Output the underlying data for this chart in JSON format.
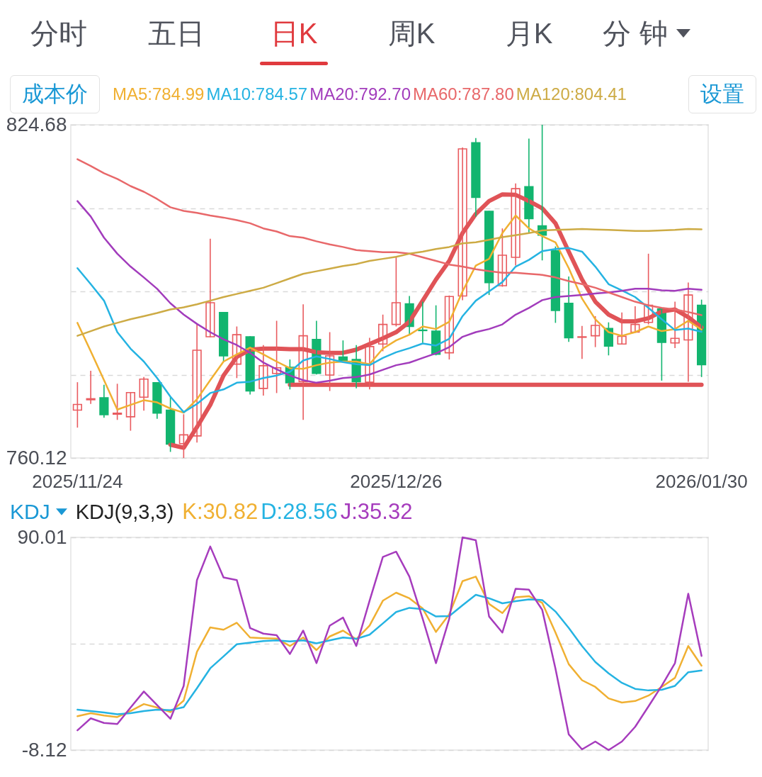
{
  "chart_data": [
    {
      "type": "other",
      "categories": [
        "分时",
        "五日",
        "日K",
        "周K",
        "月K",
        "分 钟"
      ],
      "colors": [
        "#50535c",
        "#50535c",
        "#e03a3e",
        "#50535c",
        "#50535c",
        "#50535c"
      ]
    },
    {
      "type": "candlestick",
      "categories": [
        "2025/11/24",
        null,
        null,
        null,
        null,
        null,
        null,
        null,
        null,
        null,
        null,
        null,
        null,
        null,
        null,
        null,
        null,
        null,
        null,
        null,
        null,
        null,
        null,
        null,
        "2025/12/26",
        null,
        null,
        null,
        null,
        null,
        null,
        null,
        null,
        null,
        null,
        null,
        null,
        null,
        null,
        null,
        null,
        null,
        null,
        null,
        null,
        null,
        null,
        "2026/01/30"
      ],
      "ohlc": [
        [
          769.4,
          774.8,
          766.0,
          770.5
        ],
        [
          771.4,
          777.0,
          770.6,
          771.6
        ],
        [
          771.8,
          774.3,
          767.9,
          768.5
        ],
        [
          768.6,
          774.5,
          767.5,
          768.8
        ],
        [
          768.1,
          772.9,
          765.4,
          772.8
        ],
        [
          771.9,
          775.8,
          769.3,
          775.4
        ],
        [
          774.7,
          774.8,
          767.7,
          768.8
        ],
        [
          769.4,
          772.0,
          761.3,
          762.8
        ],
        [
          762.9,
          768.6,
          760.12,
          764.6
        ],
        [
          764.4,
          786.0,
          763.1,
          781.0
        ],
        [
          783.6,
          802.6,
          783.5,
          790.2
        ],
        [
          788.3,
          788.4,
          778.8,
          779.9
        ],
        [
          778.3,
          785.6,
          775.6,
          784.0
        ],
        [
          783.6,
          783.7,
          772.4,
          773.1
        ],
        [
          773.6,
          782.0,
          772.2,
          778.0
        ],
        [
          776.5,
          786.7,
          772.7,
          777.6
        ],
        [
          777.7,
          779.2,
          773.4,
          774.7
        ],
        [
          774.9,
          789.9,
          767.5,
          783.8
        ],
        [
          783.1,
          786.7,
          776.3,
          776.5
        ],
        [
          776.2,
          784.5,
          773.1,
          779.9
        ],
        [
          779.7,
          782.9,
          778.8,
          779.0
        ],
        [
          779.2,
          782.0,
          773.6,
          774.9
        ],
        [
          774.8,
          783.4,
          773.4,
          781.7
        ],
        [
          782.2,
          787.9,
          780.8,
          786.0
        ],
        [
          786.0,
          799.2,
          785.6,
          790.2
        ],
        [
          790.0,
          791.5,
          784.0,
          785.6
        ],
        [
          784.9,
          790.4,
          782.4,
          784.8
        ],
        [
          784.7,
          789.7,
          780.0,
          780.2
        ],
        [
          780.5,
          791.6,
          779.2,
          791.4
        ],
        [
          791.5,
          820.3,
          790.7,
          820.0
        ],
        [
          821.2,
          822.1,
          806.9,
          810.6
        ],
        [
          807.9,
          808.0,
          791.7,
          794.1
        ],
        [
          793.5,
          804.6,
          793.3,
          799.4
        ],
        [
          799.0,
          813.3,
          797.4,
          812.3
        ],
        [
          812.7,
          822.0,
          803.7,
          806.5
        ],
        [
          805.1,
          824.68,
          798.4,
          803.3
        ],
        [
          800.3,
          801.1,
          786.3,
          788.7
        ],
        [
          790.1,
          795.3,
          782.6,
          783.4
        ],
        [
          783.5,
          785.7,
          779.3,
          783.6
        ],
        [
          783.8,
          787.6,
          781.6,
          785.8
        ],
        [
          785.2,
          786.4,
          780.0,
          781.8
        ],
        [
          782.2,
          788.3,
          782.1,
          783.7
        ],
        [
          784.5,
          789.5,
          784.4,
          786.0
        ],
        [
          786.4,
          799.7,
          786.0,
          789.7
        ],
        [
          789.0,
          789.1,
          775.1,
          782.5
        ],
        [
          782.4,
          790.4,
          781.4,
          783.3
        ],
        [
          783.0,
          794.1,
          774.9,
          791.7
        ],
        [
          789.7,
          790.8,
          775.8,
          778.2
        ]
      ],
      "colors": [
        "#e95b5f",
        "#e95b5f",
        "#12b56f",
        "#e95b5f",
        "#e95b5f",
        "#e95b5f",
        "#12b56f",
        "#12b56f",
        "#e95b5f",
        "#e95b5f",
        "#e95b5f",
        "#12b56f",
        "#e95b5f",
        "#12b56f",
        "#e95b5f",
        "#e95b5f",
        "#12b56f",
        "#e95b5f",
        "#12b56f",
        "#e95b5f",
        "#12b56f",
        "#12b56f",
        "#e95b5f",
        "#e95b5f",
        "#e95b5f",
        "#12b56f",
        "#12b56f",
        "#12b56f",
        "#e95b5f",
        "#e95b5f",
        "#12b56f",
        "#12b56f",
        "#e95b5f",
        "#e95b5f",
        "#12b56f",
        "#12b56f",
        "#12b56f",
        "#12b56f",
        "#e95b5f",
        "#e95b5f",
        "#12b56f",
        "#e95b5f",
        "#e95b5f",
        "#e95b5f",
        "#12b56f",
        "#e95b5f",
        "#e95b5f",
        "#12b56f"
      ],
      "series": [
        {
          "type": "line",
          "name": "MA5:784.99",
          "color": "#f0b032",
          "values": [
            786.3,
            780.8,
            775.2,
            769.5,
            770.4,
            771.3,
            770.9,
            769.7,
            768.9,
            771.5,
            775.2,
            778.8,
            780.2,
            781.5,
            780.2,
            778.8,
            777.5,
            777.4,
            778.1,
            778.6,
            778.8,
            778.8,
            778.3,
            781.3,
            782.9,
            784.0,
            785.6,
            785.1,
            786.5,
            792.4,
            797.4,
            798.7,
            803.7,
            807.1,
            804.6,
            803.1,
            801.9,
            796.9,
            791.0,
            787.0,
            784.5,
            783.8,
            784.5,
            785.6,
            784.7,
            785.1,
            786.7,
            784.99
          ]
        },
        {
          "type": "line",
          "name": "MA10:784.57",
          "color": "#25b3e2",
          "values": [
            796.9,
            793.8,
            790.6,
            784.5,
            781.3,
            778.8,
            775.6,
            772.0,
            769.0,
            770.6,
            772.7,
            773.4,
            774.7,
            774.9,
            775.6,
            776.1,
            776.8,
            779.0,
            779.8,
            779.3,
            778.7,
            778.3,
            778.1,
            779.5,
            780.6,
            781.4,
            782.3,
            781.9,
            783.2,
            787.6,
            790.6,
            792.4,
            794.2,
            797.2,
            798.5,
            800.2,
            800.6,
            800.8,
            800.1,
            797.2,
            793.8,
            792.6,
            791.3,
            789.2,
            787.0,
            784.9,
            785.2,
            784.57
          ]
        },
        {
          "type": "line",
          "name": "MA20:792.70",
          "color": "#a23cbc",
          "values": [
            809.9,
            806.9,
            802.8,
            799.7,
            797.2,
            795.1,
            792.9,
            790.1,
            787.9,
            786.1,
            784.5,
            783.1,
            782.0,
            780.5,
            778.6,
            777.3,
            776.1,
            775.2,
            774.7,
            775.1,
            775.6,
            775.8,
            776.3,
            777.2,
            778.1,
            778.6,
            779.5,
            780.4,
            781.6,
            783.6,
            784.5,
            785.1,
            786.0,
            787.9,
            789.2,
            790.7,
            791.3,
            791.5,
            791.7,
            792.0,
            792.2,
            792.5,
            792.9,
            792.9,
            792.6,
            792.5,
            792.9,
            792.7
          ]
        },
        {
          "type": "line",
          "name": "MA60:787.80",
          "color": "#e8686a",
          "values": [
            818.0,
            816.7,
            815.3,
            814.2,
            812.8,
            811.7,
            810.3,
            808.7,
            808.0,
            807.6,
            807.1,
            806.7,
            806.2,
            805.6,
            804.6,
            804.0,
            803.1,
            802.8,
            802.1,
            801.5,
            801.0,
            800.4,
            800.2,
            800.0,
            800.0,
            799.7,
            799.0,
            798.3,
            797.6,
            797.2,
            796.7,
            796.3,
            796.0,
            796.0,
            795.8,
            795.6,
            795.1,
            794.4,
            793.8,
            793.1,
            792.2,
            791.3,
            790.4,
            789.7,
            789.2,
            788.9,
            788.4,
            787.8
          ]
        },
        {
          "type": "line",
          "name": "MA120:804.41",
          "color": "#cdab45",
          "values": [
            783.8,
            784.7,
            785.6,
            786.3,
            787.0,
            787.6,
            788.2,
            788.9,
            789.3,
            789.9,
            790.6,
            791.3,
            791.9,
            792.5,
            793.1,
            794.0,
            794.9,
            795.8,
            796.3,
            796.8,
            797.3,
            797.7,
            798.3,
            798.7,
            799.1,
            799.7,
            800.1,
            800.6,
            801.0,
            801.7,
            801.9,
            802.4,
            802.9,
            803.3,
            803.7,
            804.2,
            804.3,
            804.4,
            804.5,
            804.4,
            804.3,
            804.2,
            804.1,
            804.1,
            804.2,
            804.3,
            804.5,
            804.41
          ]
        },
        {
          "type": "line",
          "color": "#e05357",
          "values": [
            null,
            null,
            null,
            null,
            null,
            null,
            null,
            762.7,
            762.1,
            766.1,
            770.4,
            776.1,
            779.7,
            781.1,
            781.3,
            781.3,
            781.2,
            781.2,
            780.6,
            780.5,
            780.5,
            781.1,
            782.2,
            783.3,
            784.5,
            786.5,
            790.6,
            794.7,
            798.3,
            803.7,
            807.4,
            809.9,
            811.2,
            811.1,
            809.9,
            808.5,
            805.6,
            800.1,
            794.7,
            790.4,
            787.9,
            786.6,
            786.6,
            787.2,
            788.5,
            788.9,
            787.4,
            785.4
          ]
        },
        {
          "type": "line",
          "color": "#e05357",
          "values": [
            null,
            null,
            null,
            null,
            null,
            null,
            null,
            null,
            null,
            null,
            null,
            null,
            null,
            null,
            null,
            null,
            774.3,
            774.3,
            774.3,
            774.3,
            774.3,
            774.3,
            774.3,
            774.3,
            774.3,
            774.3,
            774.3,
            774.3,
            774.3,
            774.3,
            774.3,
            774.3,
            774.3,
            774.3,
            774.3,
            774.3,
            774.3,
            774.3,
            774.3,
            774.3,
            774.3,
            774.3,
            774.3,
            774.3,
            774.3,
            774.3,
            774.3,
            774.3
          ]
        }
      ],
      "ylim": [
        760.12,
        824.68
      ],
      "yticks": [
        760.12,
        {
          "value": 776.26,
          "label": null
        },
        {
          "value": 792.4,
          "label": null
        },
        {
          "value": 808.54,
          "label": null
        },
        824.68
      ],
      "grid": "y",
      "legend": "top",
      "annotations": [
        "成本价",
        "设置"
      ]
    },
    {
      "type": "line",
      "title": "KDJ",
      "subtitle": "KDJ(9,3,3)",
      "categories": [
        "2025/11/24",
        null,
        null,
        null,
        null,
        null,
        null,
        null,
        null,
        null,
        null,
        null,
        null,
        null,
        null,
        null,
        null,
        null,
        null,
        null,
        null,
        null,
        null,
        null,
        "2025/12/26",
        null,
        null,
        null,
        null,
        null,
        null,
        null,
        null,
        null,
        null,
        null,
        null,
        null,
        null,
        null,
        null,
        null,
        null,
        null,
        null,
        null,
        null,
        "2026/01/30"
      ],
      "tick_labels": "y",
      "series": [
        {
          "name": "K:30.82",
          "color": "#f0b032",
          "values": [
            7.5,
            8.9,
            7.8,
            7.1,
            9.9,
            13.1,
            11.5,
            9.4,
            14.7,
            37.2,
            48.5,
            47.4,
            50.6,
            43.8,
            43.5,
            43.3,
            39.9,
            43.8,
            38.0,
            44.3,
            47.0,
            43.0,
            49.3,
            60.8,
            64.5,
            61.9,
            57.2,
            46.4,
            54.5,
            69.8,
            71.9,
            59.3,
            55.1,
            62.4,
            62.9,
            59.8,
            46.1,
            31.5,
            24.1,
            21.0,
            15.7,
            13.8,
            14.5,
            17.0,
            21.0,
            25.2,
            39.9,
            30.82
          ]
        },
        {
          "name": "D:28.56",
          "color": "#25b3e2",
          "values": [
            10.5,
            9.9,
            9.2,
            8.4,
            8.9,
            9.9,
            10.5,
            10.3,
            11.7,
            20.4,
            29.6,
            35.1,
            40.7,
            41.4,
            42.2,
            42.5,
            42.0,
            42.5,
            41.1,
            42.5,
            43.8,
            43.2,
            45.1,
            50.3,
            55.6,
            57.5,
            56.9,
            53.5,
            53.7,
            58.7,
            63.5,
            61.9,
            59.6,
            60.6,
            61.4,
            61.1,
            55.8,
            48.2,
            39.9,
            32.5,
            27.3,
            22.9,
            20.1,
            19.4,
            19.7,
            21.5,
            27.8,
            28.56
          ]
        },
        {
          "name": "J:35.32",
          "color": "#a63cbd",
          "values": [
            1.0,
            6.5,
            4.4,
            3.9,
            11.5,
            18.9,
            12.6,
            6.3,
            21.5,
            70.3,
            85.8,
            71.5,
            70.3,
            48.2,
            45.6,
            44.9,
            36.2,
            47.0,
            32.0,
            49.3,
            53.0,
            39.9,
            60.8,
            81.0,
            83.4,
            71.9,
            52.4,
            32.0,
            52.4,
            90.01,
            88.7,
            53.5,
            46.1,
            66.3,
            65.9,
            56.6,
            29.4,
            -0.9,
            -7.8,
            -4.2,
            -8.12,
            -4.2,
            2.6,
            12.0,
            21.5,
            32.0,
            64.0,
            35.32
          ]
        }
      ],
      "ylim": [
        -8.12,
        90.01
      ],
      "yticks": [
        -8.12,
        {
          "value": 40.95,
          "label": null
        },
        90.01
      ],
      "grid": "y",
      "legend": "top"
    }
  ]
}
